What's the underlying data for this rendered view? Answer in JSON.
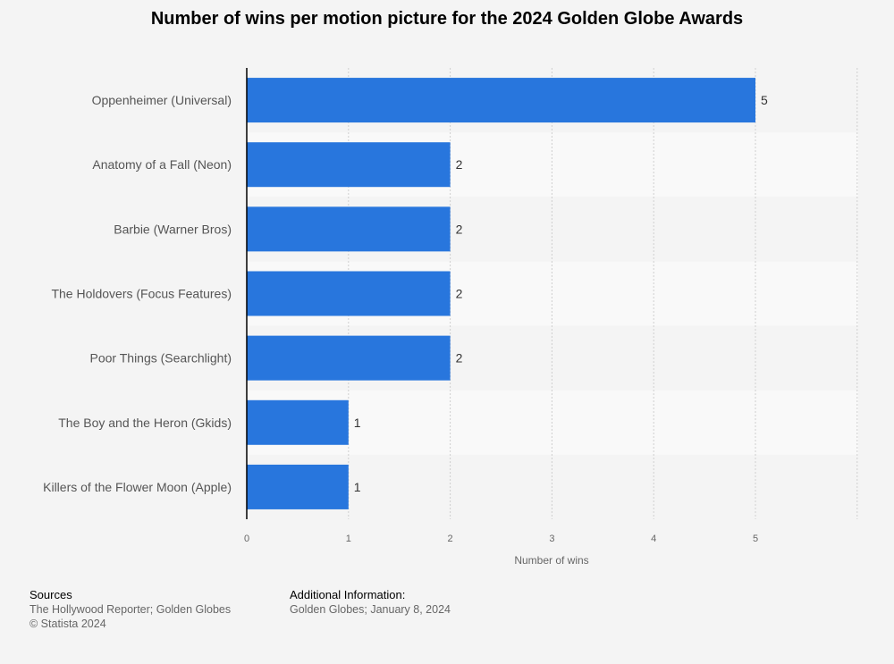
{
  "chart_data": {
    "type": "bar",
    "orientation": "horizontal",
    "title": "Number of wins per motion picture for the 2024 Golden Globe Awards",
    "categories": [
      "Oppenheimer (Universal)",
      "Anatomy of a Fall (Neon)",
      "Barbie (Warner Bros)",
      "The Holdovers (Focus Features)",
      "Poor Things (Searchlight)",
      "The Boy and the Heron (Gkids)",
      "Killers of the Flower Moon (Apple)"
    ],
    "values": [
      5,
      2,
      2,
      2,
      2,
      1,
      1
    ],
    "xlabel": "Number of wins",
    "ylabel": "",
    "xlim": [
      0,
      6
    ],
    "xticks": [
      0,
      1,
      2,
      3,
      4,
      5
    ],
    "grid": true,
    "data_labels": true,
    "colors": {
      "bar": "#2876dd"
    }
  },
  "footer": {
    "sources_header": "Sources",
    "sources_text": "The Hollywood Reporter; Golden Globes",
    "copyright": "© Statista 2024",
    "additional_header": "Additional Information:",
    "additional_text": "Golden Globes; January 8, 2024"
  }
}
